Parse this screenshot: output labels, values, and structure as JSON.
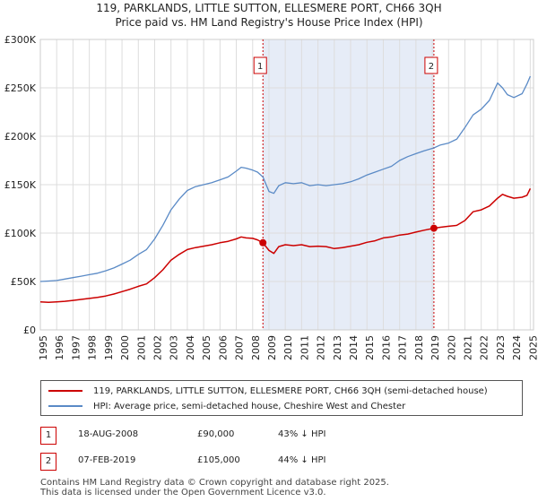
{
  "title_line1": "119, PARKLANDS, LITTLE SUTTON, ELLESMERE PORT, CH66 3QH",
  "title_line2": "Price paid vs. HM Land Registry's House Price Index (HPI)",
  "chart_data": {
    "type": "line",
    "title": "119, PARKLANDS, LITTLE SUTTON, ELLESMERE PORT, CH66 3QH",
    "subtitle": "Price paid vs. HM Land Registry's House Price Index (HPI)",
    "xlim": [
      1995,
      2025.2
    ],
    "ylim": [
      0,
      300000
    ],
    "x_ticks": [
      1995,
      1996,
      1997,
      1998,
      1999,
      2000,
      2001,
      2002,
      2003,
      2004,
      2005,
      2006,
      2007,
      2008,
      2009,
      2010,
      2011,
      2012,
      2013,
      2014,
      2015,
      2016,
      2017,
      2018,
      2019,
      2020,
      2021,
      2022,
      2023,
      2024,
      2025
    ],
    "y_ticks": [
      0,
      50000,
      100000,
      150000,
      200000,
      250000,
      300000
    ],
    "y_tick_labels": [
      "£0",
      "£50K",
      "£100K",
      "£150K",
      "£200K",
      "£250K",
      "£300K"
    ],
    "grid": true,
    "shaded_region": [
      2008.63,
      2019.1
    ],
    "series": [
      {
        "name": "119, PARKLANDS, LITTLE SUTTON, ELLESMERE PORT, CH66 3QH (semi-detached house)",
        "color": "#cc0000",
        "x": [
          1995,
          1995.5,
          1996,
          1996.5,
          1997,
          1997.5,
          1998,
          1998.5,
          1999,
          1999.5,
          2000,
          2000.5,
          2001,
          2001.5,
          2002,
          2002.5,
          2003,
          2003.5,
          2004,
          2004.5,
          2005,
          2005.5,
          2006,
          2006.5,
          2007,
          2007.3,
          2007.6,
          2008,
          2008.3,
          2008.63,
          2009,
          2009.3,
          2009.6,
          2010,
          2010.5,
          2011,
          2011.5,
          2012,
          2012.5,
          2013,
          2013.5,
          2014,
          2014.5,
          2015,
          2015.5,
          2016,
          2016.5,
          2017,
          2017.5,
          2018,
          2018.5,
          2019.1,
          2019.5,
          2020,
          2020.5,
          2021,
          2021.5,
          2022,
          2022.5,
          2023,
          2023.3,
          2023.6,
          2024,
          2024.5,
          2024.8,
          2025
        ],
        "values": [
          29000,
          28500,
          29000,
          29500,
          30500,
          31500,
          32500,
          33500,
          35000,
          37000,
          39500,
          42000,
          45000,
          47500,
          54000,
          62000,
          72000,
          78000,
          83000,
          85000,
          86500,
          88000,
          90000,
          91500,
          94000,
          96000,
          95000,
          94500,
          93000,
          90000,
          82000,
          79000,
          86000,
          88000,
          87000,
          88000,
          86000,
          86500,
          86000,
          84000,
          85000,
          86500,
          88000,
          90500,
          92000,
          95000,
          96000,
          98000,
          99000,
          101000,
          103000,
          105000,
          106000,
          107000,
          108000,
          113000,
          122000,
          124000,
          128000,
          136000,
          140000,
          138000,
          136000,
          137000,
          139000,
          146000
        ]
      },
      {
        "name": "HPI: Average price, semi-detached house, Cheshire West and Chester",
        "color": "#5a8ac6",
        "x": [
          1995,
          1995.5,
          1996,
          1996.5,
          1997,
          1997.5,
          1998,
          1998.5,
          1999,
          1999.5,
          2000,
          2000.5,
          2001,
          2001.5,
          2002,
          2002.5,
          2003,
          2003.5,
          2004,
          2004.5,
          2005,
          2005.5,
          2006,
          2006.5,
          2007,
          2007.3,
          2007.6,
          2008,
          2008.3,
          2008.63,
          2009,
          2009.3,
          2009.6,
          2010,
          2010.5,
          2011,
          2011.5,
          2012,
          2012.5,
          2013,
          2013.5,
          2014,
          2014.5,
          2015,
          2015.5,
          2016,
          2016.5,
          2017,
          2017.5,
          2018,
          2018.5,
          2019.1,
          2019.5,
          2020,
          2020.5,
          2021,
          2021.5,
          2022,
          2022.5,
          2023,
          2023.3,
          2023.6,
          2024,
          2024.5,
          2024.8,
          2025
        ],
        "values": [
          50000,
          50500,
          51000,
          52500,
          54000,
          55500,
          57000,
          58500,
          61000,
          64000,
          68000,
          72000,
          78000,
          83000,
          94000,
          108000,
          124000,
          135000,
          144000,
          148000,
          150000,
          152000,
          155000,
          158000,
          164000,
          168000,
          167000,
          165000,
          163000,
          158000,
          143000,
          141000,
          149000,
          152000,
          151000,
          152000,
          149000,
          150000,
          149000,
          150000,
          151000,
          153000,
          156000,
          160000,
          163000,
          166000,
          169000,
          175000,
          179000,
          182000,
          185000,
          188000,
          191000,
          193000,
          197000,
          209000,
          222000,
          228000,
          237000,
          255000,
          250000,
          243000,
          240000,
          244000,
          254000,
          262000
        ]
      }
    ],
    "annotations": [
      {
        "label": "1",
        "x": 2008.63,
        "value": 90000
      },
      {
        "label": "2",
        "x": 2019.1,
        "value": 105000
      }
    ]
  },
  "legend": {
    "red_label": "119, PARKLANDS, LITTLE SUTTON, ELLESMERE PORT, CH66 3QH (semi-detached house)",
    "blue_label": "HPI: Average price, semi-detached house, Cheshire West and Chester"
  },
  "sales": [
    {
      "num": "1",
      "date": "18-AUG-2008",
      "price": "£90,000",
      "hpi": "43% ↓ HPI"
    },
    {
      "num": "2",
      "date": "07-FEB-2019",
      "price": "£105,000",
      "hpi": "44% ↓ HPI"
    }
  ],
  "footer_line1": "Contains HM Land Registry data © Crown copyright and database right 2025.",
  "footer_line2": "This data is licensed under the Open Government Licence v3.0."
}
